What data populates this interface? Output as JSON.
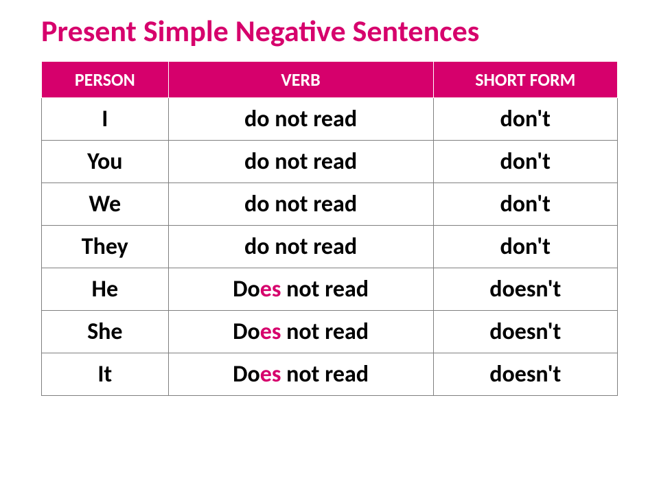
{
  "title": {
    "text": "Present Simple Negative Sentences",
    "color": "#d6006c",
    "fontsize": 44
  },
  "table": {
    "header_bg": "#d6006c",
    "header_color": "#ffffff",
    "header_fontsize": 26,
    "cell_fontsize": 34,
    "border_color": "#7f7f7f",
    "es_color": "#d6006c",
    "column_widths": [
      "22%",
      "46%",
      "32%"
    ],
    "columns": [
      "Person",
      "Verb",
      "Short form"
    ],
    "rows": [
      {
        "person": "I",
        "verb_prefix": "do",
        "verb_es": "",
        "verb_rest": " not read",
        "short_prefix": "don",
        "short_suffix": "'t"
      },
      {
        "person": "You",
        "verb_prefix": "do",
        "verb_es": "",
        "verb_rest": " not read",
        "short_prefix": "don",
        "short_suffix": "'t"
      },
      {
        "person": "We",
        "verb_prefix": "do",
        "verb_es": "",
        "verb_rest": " not read",
        "short_prefix": "don",
        "short_suffix": "'t"
      },
      {
        "person": "They",
        "verb_prefix": "do",
        "verb_es": "",
        "verb_rest": " not read",
        "short_prefix": "don",
        "short_suffix": "'t"
      },
      {
        "person": "He",
        "verb_prefix": "Do",
        "verb_es": "es",
        "verb_rest": " not read",
        "short_prefix": "doesn",
        "short_suffix": "'t"
      },
      {
        "person": "She",
        "verb_prefix": "Do",
        "verb_es": "es",
        "verb_rest": " not read",
        "short_prefix": "doesn",
        "short_suffix": "'t"
      },
      {
        "person": "It",
        "verb_prefix": "Do",
        "verb_es": "es",
        "verb_rest": " not read",
        "short_prefix": "doesn",
        "short_suffix": "'t"
      }
    ]
  }
}
